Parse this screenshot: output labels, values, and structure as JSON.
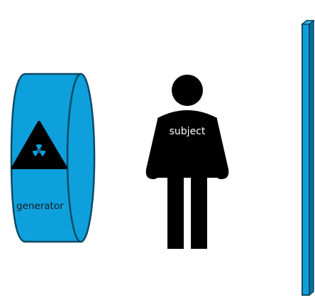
{
  "generator": {
    "label": "generator",
    "icon": "radiation-warning-icon",
    "fill_color": "#0ea0dc",
    "outline_color": "#0d4a66"
  },
  "subject": {
    "label": "subject",
    "icon": "person-icon",
    "color": "#000000"
  },
  "detector": {
    "icon": "detector-panel",
    "fill_color": "#0ea0dc",
    "outline_color": "#0d4a66"
  },
  "colors": {
    "background": "#ffffff",
    "label_text_generator": "#1a1a1a",
    "label_text_subject": "#ffffff"
  }
}
